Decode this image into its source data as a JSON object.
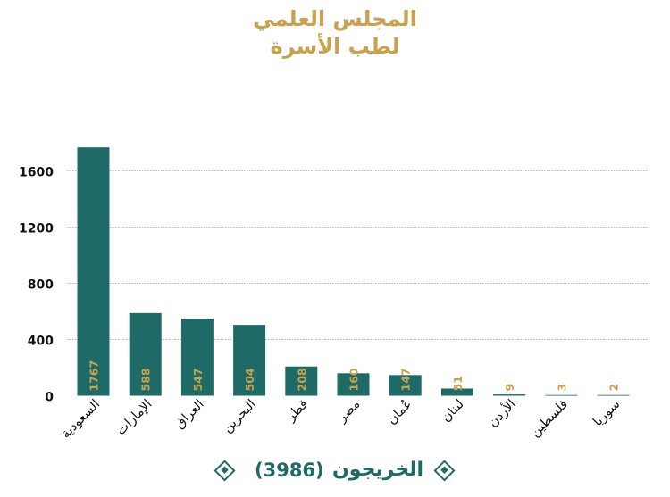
{
  "header": {
    "title_line1": "المجلس العلمي",
    "title_line2": "لطب الأسرة"
  },
  "legend": {
    "series_name": "الخريجون",
    "total": "(3986)",
    "icon": "diamond-icon"
  },
  "colors": {
    "bar": "#1d6a66",
    "label": "#c9a24e",
    "grid": "#9a9a9a"
  },
  "chart_data": {
    "type": "bar",
    "title": "المجلس العلمي لطب الأسرة",
    "xlabel": "",
    "ylabel": "",
    "ylim": [
      0,
      1800
    ],
    "yticks": [
      0,
      400,
      800,
      1200,
      1600
    ],
    "grid": true,
    "legend_position": "bottom",
    "categories": [
      "السعودية",
      "الإمارات",
      "العراق",
      "البحرين",
      "قطر",
      "مصر",
      "عُمان",
      "لبنان",
      "الأردن",
      "فلسطين",
      "سوريا"
    ],
    "series": [
      {
        "name": "الخريجون",
        "values": [
          1767,
          588,
          547,
          504,
          208,
          160,
          147,
          51,
          9,
          3,
          2
        ]
      }
    ]
  }
}
